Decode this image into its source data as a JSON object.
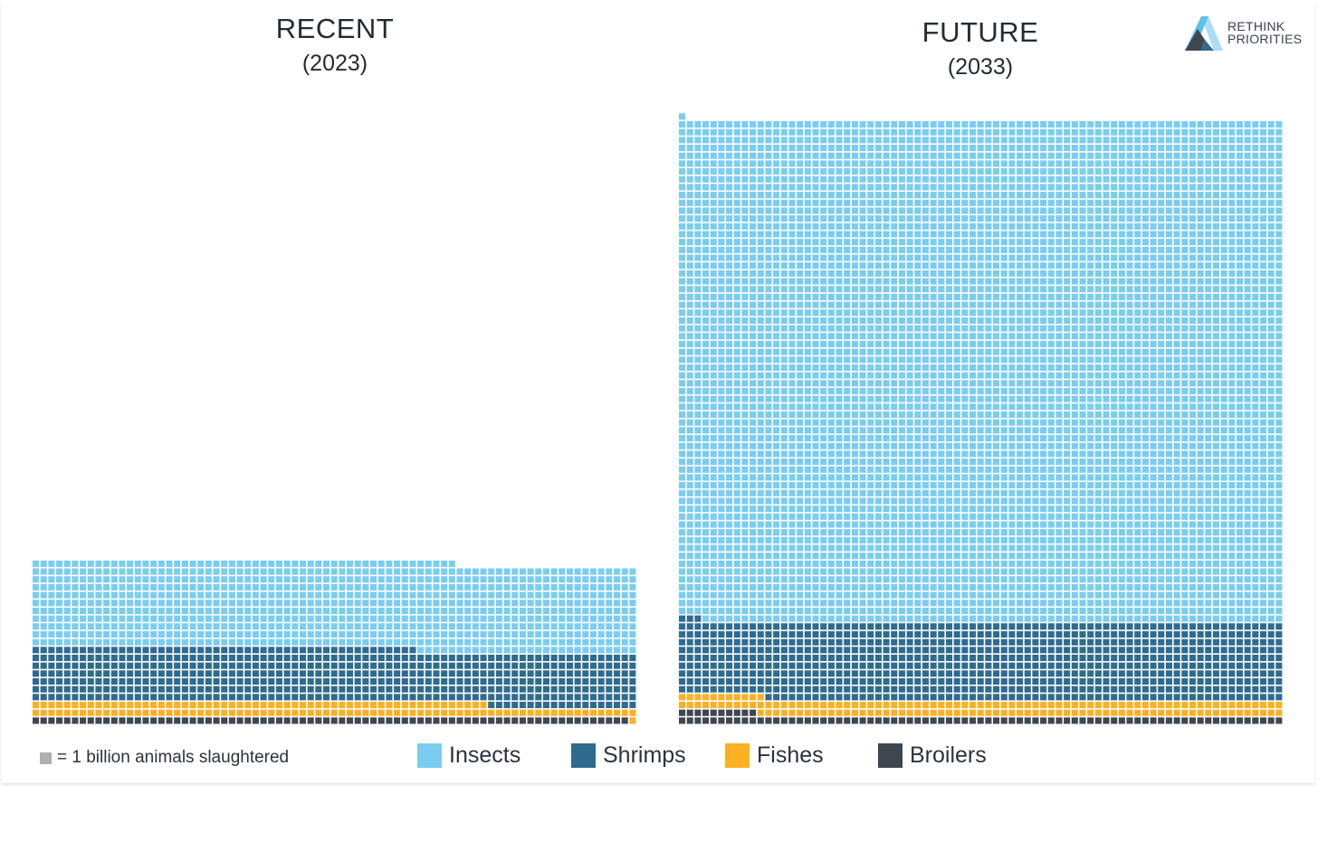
{
  "logo": {
    "line1": "RETHINK",
    "line2": "PRIORITIES"
  },
  "unit_note": "= 1 billion animals slaughtered",
  "colors": {
    "Insects": "#7acdf0",
    "Shrimps": "#2f6b8f",
    "Fishes": "#fdb021",
    "Broilers": "#3f4650",
    "unit": "#b0b0b0"
  },
  "legend": [
    "Insects",
    "Shrimps",
    "Fishes",
    "Broilers"
  ],
  "chart_data": [
    {
      "type": "waffle",
      "title": "RECENT",
      "subtitle": "(2023)",
      "unit": "1 billion animals slaughtered per square",
      "columns": 77,
      "fill_order": "bottom-up, left-to-right",
      "series": [
        {
          "name": "Broilers",
          "value": 76
        },
        {
          "name": "Fishes",
          "value": 136
        },
        {
          "name": "Shrimps",
          "value": 530
        },
        {
          "name": "Insects",
          "value": 852
        }
      ]
    },
    {
      "type": "waffle",
      "title": "FUTURE",
      "subtitle": "(2033)",
      "unit": "1 billion animals slaughtered per square",
      "columns": 77,
      "fill_order": "bottom-up, left-to-right",
      "series": [
        {
          "name": "Broilers",
          "value": 87
        },
        {
          "name": "Fishes",
          "value": 155
        },
        {
          "name": "Shrimps",
          "value": 762
        },
        {
          "name": "Insects",
          "value": 4926
        }
      ]
    }
  ]
}
